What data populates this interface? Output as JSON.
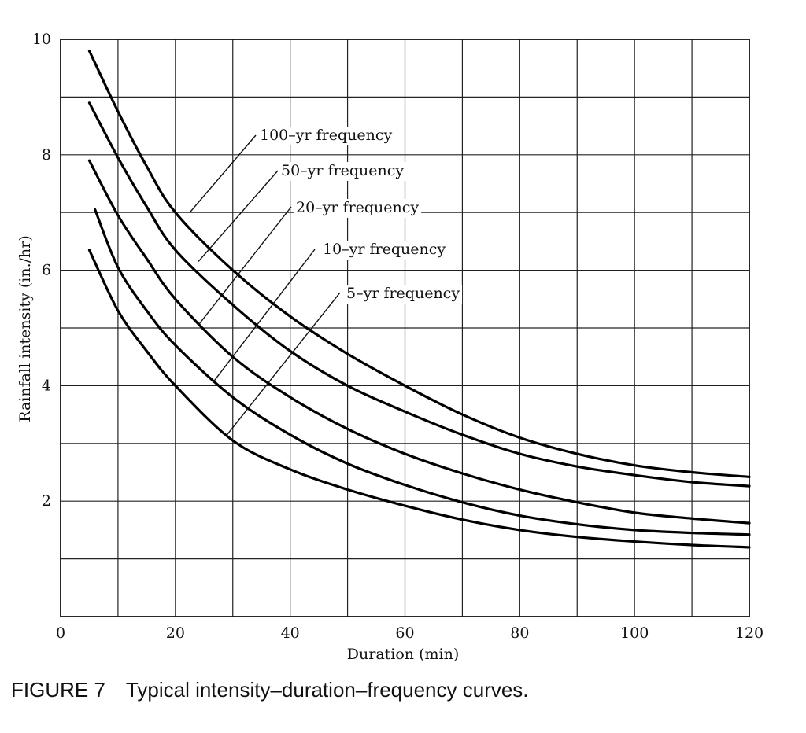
{
  "chart_data": {
    "type": "line",
    "title": "",
    "xlabel": "Duration (min)",
    "ylabel": "Rainfall intensity (in./hr)",
    "xlim": [
      0,
      120
    ],
    "ylim": [
      0,
      10
    ],
    "x_ticks": [
      0,
      20,
      40,
      60,
      80,
      100,
      120
    ],
    "y_ticks": [
      2,
      4,
      6,
      8,
      10
    ],
    "grid": true,
    "x_grid_step": 10,
    "y_grid_step": 1,
    "series": [
      {
        "name": "100-yr frequency",
        "label": "100–yr frequency",
        "x": [
          5,
          10,
          15,
          20,
          30,
          40,
          50,
          60,
          70,
          80,
          90,
          100,
          110,
          120
        ],
        "y": [
          9.8,
          8.75,
          7.8,
          7.0,
          6.0,
          5.2,
          4.55,
          4.0,
          3.5,
          3.1,
          2.82,
          2.62,
          2.5,
          2.42
        ],
        "leader_from": [
          22.5,
          7.0
        ]
      },
      {
        "name": "50-yr frequency",
        "label": "50–yr frequency",
        "x": [
          5,
          10,
          15,
          20,
          30,
          40,
          50,
          60,
          70,
          80,
          90,
          100,
          110,
          120
        ],
        "y": [
          8.9,
          7.95,
          7.1,
          6.35,
          5.4,
          4.6,
          4.0,
          3.55,
          3.15,
          2.82,
          2.6,
          2.45,
          2.33,
          2.26
        ],
        "leader_from": [
          24,
          6.15
        ]
      },
      {
        "name": "20-yr frequency",
        "label": "20–yr frequency",
        "x": [
          5,
          10,
          15,
          20,
          30,
          40,
          50,
          60,
          70,
          80,
          90,
          100,
          110,
          120
        ],
        "y": [
          7.9,
          6.95,
          6.2,
          5.5,
          4.5,
          3.8,
          3.25,
          2.82,
          2.48,
          2.2,
          1.98,
          1.8,
          1.7,
          1.62
        ],
        "leader_from": [
          24,
          5.05
        ]
      },
      {
        "name": "10-yr frequency",
        "label": "10–yr frequency",
        "x": [
          6,
          10,
          15,
          20,
          30,
          40,
          50,
          60,
          70,
          80,
          90,
          100,
          110,
          120
        ],
        "y": [
          7.05,
          6.05,
          5.3,
          4.7,
          3.8,
          3.15,
          2.65,
          2.28,
          1.98,
          1.75,
          1.6,
          1.5,
          1.45,
          1.42
        ],
        "leader_from": [
          26.5,
          4.05
        ]
      },
      {
        "name": "5-yr frequency",
        "label": "5–yr frequency",
        "x": [
          5,
          10,
          15,
          20,
          30,
          40,
          50,
          60,
          70,
          80,
          90,
          100,
          110,
          120
        ],
        "y": [
          6.35,
          5.3,
          4.6,
          4.0,
          3.05,
          2.55,
          2.2,
          1.92,
          1.68,
          1.5,
          1.38,
          1.3,
          1.24,
          1.2
        ],
        "leader_from": [
          29,
          3.15
        ]
      }
    ]
  },
  "caption": {
    "figure_number": "FIGURE 7",
    "text": "Typical intensity–duration–frequency curves."
  }
}
